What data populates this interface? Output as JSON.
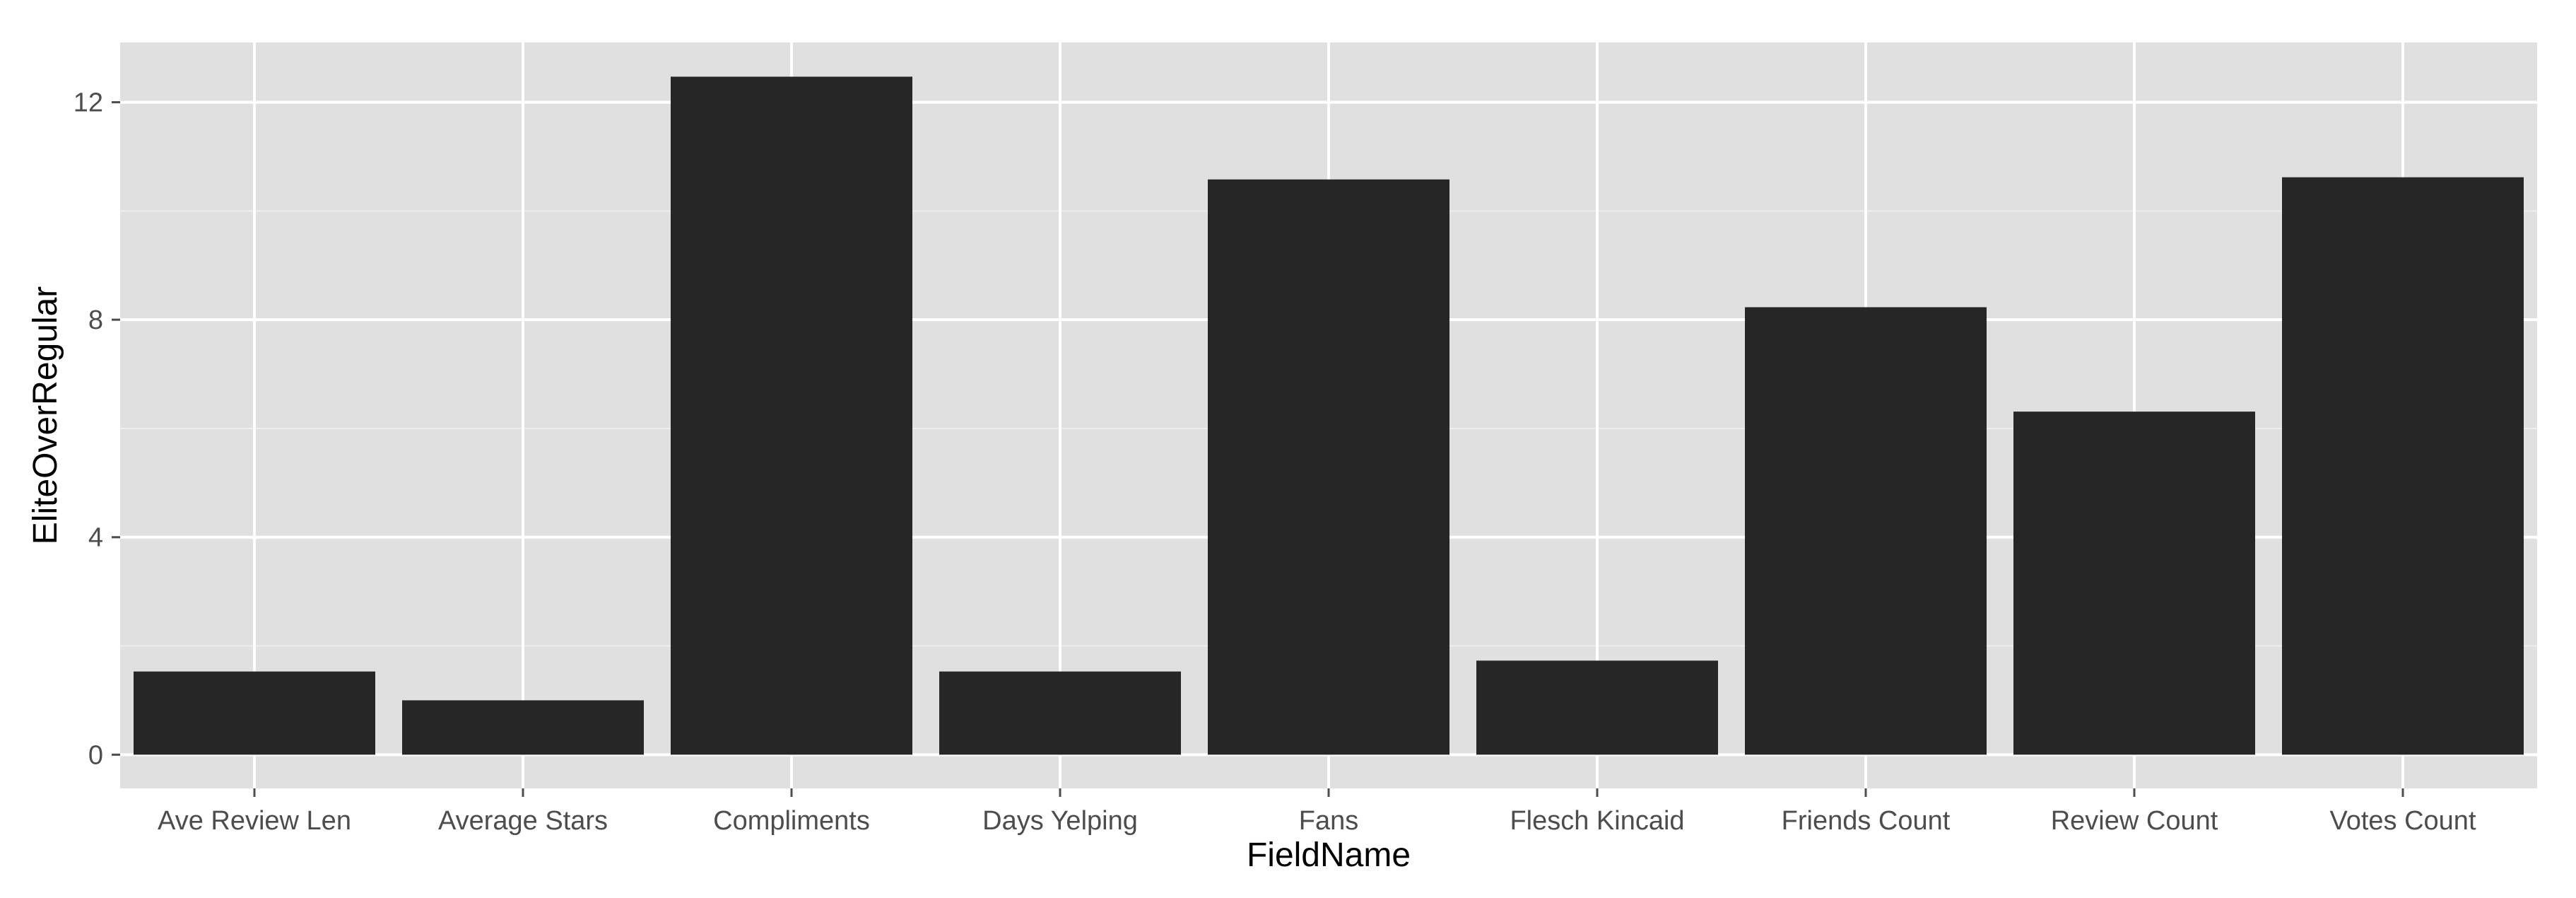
{
  "chart_data": {
    "type": "bar",
    "categories": [
      "Ave Review Len",
      "Average Stars",
      "Compliments",
      "Days Yelping",
      "Fans",
      "Flesch Kincaid",
      "Friends Count",
      "Review Count",
      "Votes Count"
    ],
    "values": [
      1.53,
      1.0,
      12.47,
      1.53,
      10.58,
      1.73,
      8.23,
      6.31,
      10.62
    ],
    "title": "",
    "xlabel": "FieldName",
    "ylabel": "EliteOverRegular",
    "ylim": [
      -0.62,
      13.1
    ],
    "yticks": [
      0,
      4,
      8,
      12
    ],
    "grid": true,
    "legend": "none",
    "colors": {
      "bar": "#262626",
      "panel": "#e0e0e0",
      "grid_major": "#ffffff",
      "grid_minor": "#ededed",
      "tick": "#4d4d4d"
    }
  }
}
